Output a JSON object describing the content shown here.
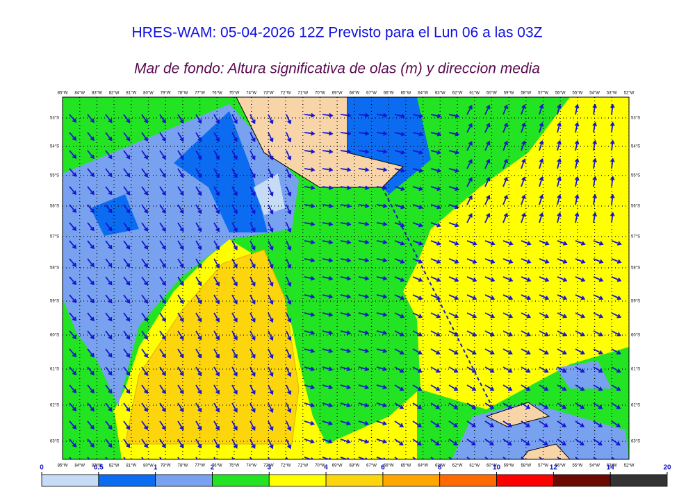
{
  "title": "HRES-WAM: 05-04-2026 12Z Previsto para el Lun 06 a las 03Z",
  "subtitle": "Mar de fondo: Altura significativa de olas (m) y direccion media",
  "map": {
    "longitude_labels": [
      "85°W",
      "84°W",
      "83°W",
      "82°W",
      "81°W",
      "80°W",
      "79°W",
      "78°W",
      "77°W",
      "76°W",
      "75°W",
      "74°W",
      "73°W",
      "72°W",
      "71°W",
      "70°W",
      "69°W",
      "68°W",
      "67°W",
      "66°W",
      "65°W",
      "64°W",
      "63°W",
      "62°W",
      "61°W",
      "60°W",
      "59°W",
      "58°W",
      "57°W",
      "56°W",
      "55°W",
      "54°W",
      "53°W",
      "52°W"
    ],
    "latitude_labels": [
      "53°S",
      "54°S",
      "55°S",
      "56°S",
      "57°S",
      "58°S",
      "59°S",
      "60°S",
      "61°S",
      "62°S",
      "63°S"
    ]
  },
  "colorbar": {
    "levels": [
      0,
      0.5,
      1,
      2,
      3,
      4,
      6,
      8,
      10,
      12,
      14,
      20
    ],
    "colors": [
      "#c6dcf6",
      "#0b6cf2",
      "#78a2ef",
      "#22e422",
      "#ffff00",
      "#fcd50c",
      "#ffa600",
      "#ff6a00",
      "#ff0000",
      "#6b0a00",
      "#333333"
    ]
  }
}
